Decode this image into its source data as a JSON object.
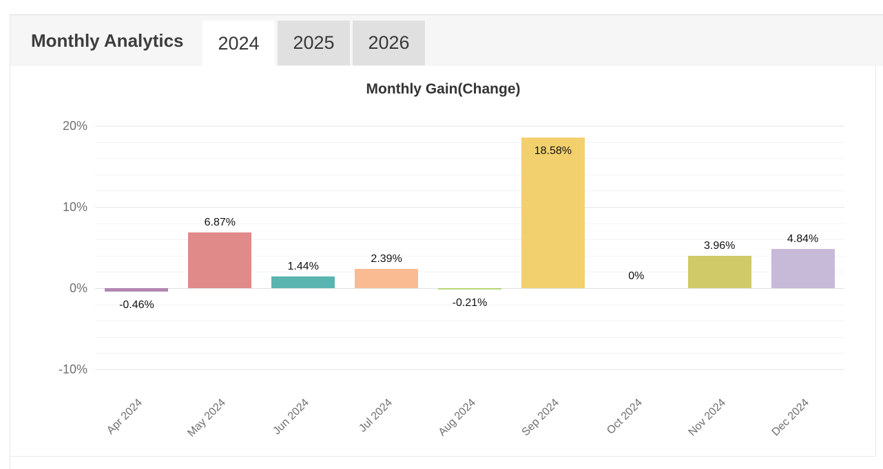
{
  "header": {
    "title": "Monthly Analytics",
    "tabs": [
      {
        "label": "2024",
        "active": true
      },
      {
        "label": "2025",
        "active": false
      },
      {
        "label": "2026",
        "active": false
      }
    ]
  },
  "chart_data": {
    "type": "bar",
    "title": "Monthly Gain(Change)",
    "categories": [
      "Apr 2024",
      "May 2024",
      "Jun 2024",
      "Jul 2024",
      "Aug 2024",
      "Sep 2024",
      "Oct 2024",
      "Nov 2024",
      "Dec 2024"
    ],
    "values": [
      -0.46,
      6.87,
      1.44,
      2.39,
      -0.21,
      18.58,
      0,
      3.96,
      4.84
    ],
    "value_labels": [
      "-0.46%",
      "6.87%",
      "1.44%",
      "2.39%",
      "-0.21%",
      "18.58%",
      "0%",
      "3.96%",
      "4.84%"
    ],
    "bar_colors": [
      "#b287b2",
      "#e08a8a",
      "#5ab4af",
      "#fbbb92",
      "#b8d475",
      "#f2d06e",
      null,
      "#d1ca68",
      "#c7b9d8"
    ],
    "yticks": [
      {
        "value": 20,
        "label": "20%"
      },
      {
        "value": 10,
        "label": "10%"
      },
      {
        "value": 0,
        "label": "0%"
      },
      {
        "value": -10,
        "label": "-10%"
      }
    ],
    "minor_tick_step": 2,
    "ylim": [
      -12,
      22
    ],
    "xlabel": "",
    "ylabel": "",
    "grid": true,
    "legend": false,
    "label_placement": "positive labels above bars, negative labels below bars, 18.58% inside bar top, 0% shown above axis with no bar"
  },
  "colors": {
    "header_bg": "#f6f6f6",
    "tab_active_bg": "#ffffff",
    "tab_inactive_bg": "#e0e0e0",
    "tab_text": "#383838",
    "card_border": "#e0e0e0",
    "grid_major": "#e7e7e7",
    "grid_minor": "#f3f3f3",
    "axis_zero_line": "#e0e0e0",
    "axis_label_text": "#707070",
    "bar_label_text": "#111111",
    "title_text": "#333333"
  }
}
